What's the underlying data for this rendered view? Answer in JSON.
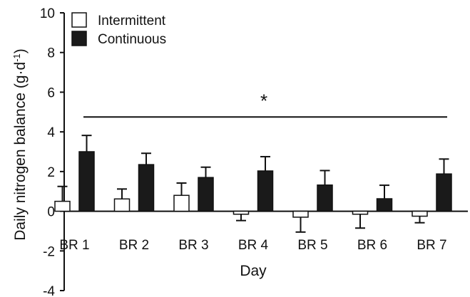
{
  "chart_data": {
    "type": "bar",
    "title": "",
    "xlabel": "Day",
    "ylabel_main": "Daily nitrogen balance (g·d",
    "ylabel_sup": "-1",
    "ylabel_close": ")",
    "ylim": [
      -4,
      10
    ],
    "yticks": [
      -4,
      -2,
      0,
      2,
      4,
      6,
      8,
      10
    ],
    "categories": [
      "BR 1",
      "BR 2",
      "BR 3",
      "BR 4",
      "BR 5",
      "BR 6",
      "BR 7"
    ],
    "series": [
      {
        "name": "Intermittent",
        "color": "#ffffff",
        "values": [
          0.5,
          0.62,
          0.8,
          -0.15,
          -0.3,
          -0.15,
          -0.25
        ],
        "errors": [
          0.75,
          0.5,
          0.62,
          0.32,
          0.75,
          0.7,
          0.33
        ]
      },
      {
        "name": "Continuous",
        "color": "#1a1a1a",
        "values": [
          3.0,
          2.35,
          1.7,
          2.03,
          1.32,
          0.63,
          1.88
        ],
        "errors": [
          0.82,
          0.57,
          0.52,
          0.72,
          0.73,
          0.68,
          0.75
        ]
      }
    ],
    "annotation": {
      "text": "*",
      "line_y": 4.75,
      "from_category": "BR 1",
      "to_category": "BR 7"
    },
    "legend_placement": "top-left",
    "grid": false
  }
}
